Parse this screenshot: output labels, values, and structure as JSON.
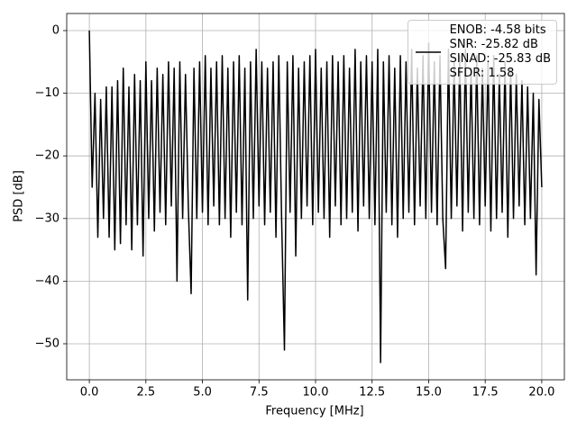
{
  "chart_data": {
    "type": "line",
    "x_label": "Frequency [MHz]",
    "y_label": "PSD [dB]",
    "x": [
      0,
      0.125,
      0.25,
      0.375,
      0.5,
      0.625,
      0.75,
      0.875,
      1,
      1.125,
      1.25,
      1.375,
      1.5,
      1.625,
      1.75,
      1.875,
      2,
      2.125,
      2.25,
      2.375,
      2.5,
      2.625,
      2.75,
      2.875,
      3,
      3.125,
      3.25,
      3.375,
      3.5,
      3.625,
      3.75,
      3.875,
      4,
      4.125,
      4.25,
      4.375,
      4.5,
      4.625,
      4.75,
      4.875,
      5,
      5.125,
      5.25,
      5.375,
      5.5,
      5.625,
      5.75,
      5.875,
      6,
      6.125,
      6.25,
      6.375,
      6.5,
      6.625,
      6.75,
      6.875,
      7,
      7.125,
      7.25,
      7.375,
      7.5,
      7.625,
      7.75,
      7.875,
      8,
      8.125,
      8.25,
      8.375,
      8.5,
      8.625,
      8.75,
      8.875,
      9,
      9.125,
      9.25,
      9.375,
      9.5,
      9.625,
      9.75,
      9.875,
      10,
      10.125,
      10.25,
      10.375,
      10.5,
      10.625,
      10.75,
      10.875,
      11,
      11.125,
      11.25,
      11.375,
      11.5,
      11.625,
      11.75,
      11.875,
      12,
      12.125,
      12.25,
      12.375,
      12.5,
      12.625,
      12.75,
      12.875,
      13,
      13.125,
      13.25,
      13.375,
      13.5,
      13.625,
      13.75,
      13.875,
      14,
      14.125,
      14.25,
      14.375,
      14.5,
      14.625,
      14.75,
      14.875,
      15,
      15.125,
      15.25,
      15.375,
      15.5,
      15.625,
      15.75,
      15.875,
      16,
      16.125,
      16.25,
      16.375,
      16.5,
      16.625,
      16.75,
      16.875,
      17,
      17.125,
      17.25,
      17.375,
      17.5,
      17.625,
      17.75,
      17.875,
      18,
      18.125,
      18.25,
      18.375,
      18.5,
      18.625,
      18.75,
      18.875,
      19,
      19.125,
      19.25,
      19.375,
      19.5,
      19.625,
      19.75,
      19.875,
      20
    ],
    "series": [
      {
        "name": "ENOB: -4.58 bits\nSNR: -25.82 dB\nSINAD: -25.83 dB\nSFDR: 1.58",
        "color": "#000000",
        "values": [
          0,
          -25,
          -10,
          -33,
          -11,
          -30,
          -9,
          -33,
          -9,
          -35,
          -8,
          -34,
          -6,
          -31,
          -9,
          -35,
          -7,
          -31,
          -8,
          -36,
          -5,
          -30,
          -8,
          -32,
          -6,
          -29,
          -7,
          -31,
          -5,
          -28,
          -6,
          -40,
          -5,
          -30,
          -7,
          -28,
          -42,
          -6,
          -30,
          -5,
          -29,
          -4,
          -31,
          -6,
          -28,
          -5,
          -31,
          -4,
          -30,
          -6,
          -33,
          -5,
          -29,
          -4,
          -31,
          -6,
          -43,
          -5,
          -30,
          -3,
          -28,
          -5,
          -31,
          -6,
          -29,
          -5,
          -33,
          -4,
          -30,
          -51,
          -5,
          -29,
          -4,
          -36,
          -6,
          -30,
          -5,
          -28,
          -4,
          -31,
          -3,
          -29,
          -6,
          -30,
          -5,
          -33,
          -4,
          -28,
          -5,
          -31,
          -4,
          -30,
          -6,
          -29,
          -3,
          -32,
          -5,
          -28,
          -4,
          -30,
          -5,
          -31,
          -3,
          -53,
          -5,
          -29,
          -4,
          -31,
          -6,
          -33,
          -4,
          -30,
          -5,
          -29,
          -3,
          -31,
          -6,
          -28,
          -4,
          -30,
          -2,
          -29,
          -5,
          -31,
          -4,
          -30,
          -38,
          -3,
          -30,
          -5,
          -28,
          -4,
          -32,
          -3,
          -29,
          -6,
          -30,
          -4,
          -31,
          -6,
          -28,
          -5,
          -32,
          -4,
          -30,
          -7,
          -29,
          -5,
          -33,
          -6,
          -30,
          -7,
          -28,
          -8,
          -31,
          -9,
          -30,
          -10,
          -39,
          -11,
          -25
        ]
      }
    ],
    "xlim": [
      -1,
      21
    ],
    "ylim": [
      -55.75,
      2.73
    ],
    "xticks": [
      {
        "value": 0,
        "label": "0.0"
      },
      {
        "value": 2.5,
        "label": "2.5"
      },
      {
        "value": 5,
        "label": "5.0"
      },
      {
        "value": 7.5,
        "label": "7.5"
      },
      {
        "value": 10,
        "label": "10.0"
      },
      {
        "value": 12.5,
        "label": "12.5"
      },
      {
        "value": 15,
        "label": "15.0"
      },
      {
        "value": 17.5,
        "label": "17.5"
      },
      {
        "value": 20,
        "label": "20.0"
      }
    ],
    "yticks": [
      {
        "value": -50,
        "label": "−50"
      },
      {
        "value": -40,
        "label": "−40"
      },
      {
        "value": -30,
        "label": "−30"
      },
      {
        "value": -20,
        "label": "−20"
      },
      {
        "value": -10,
        "label": "−10"
      },
      0
    ],
    "grid": true,
    "legend": "upper right"
  }
}
